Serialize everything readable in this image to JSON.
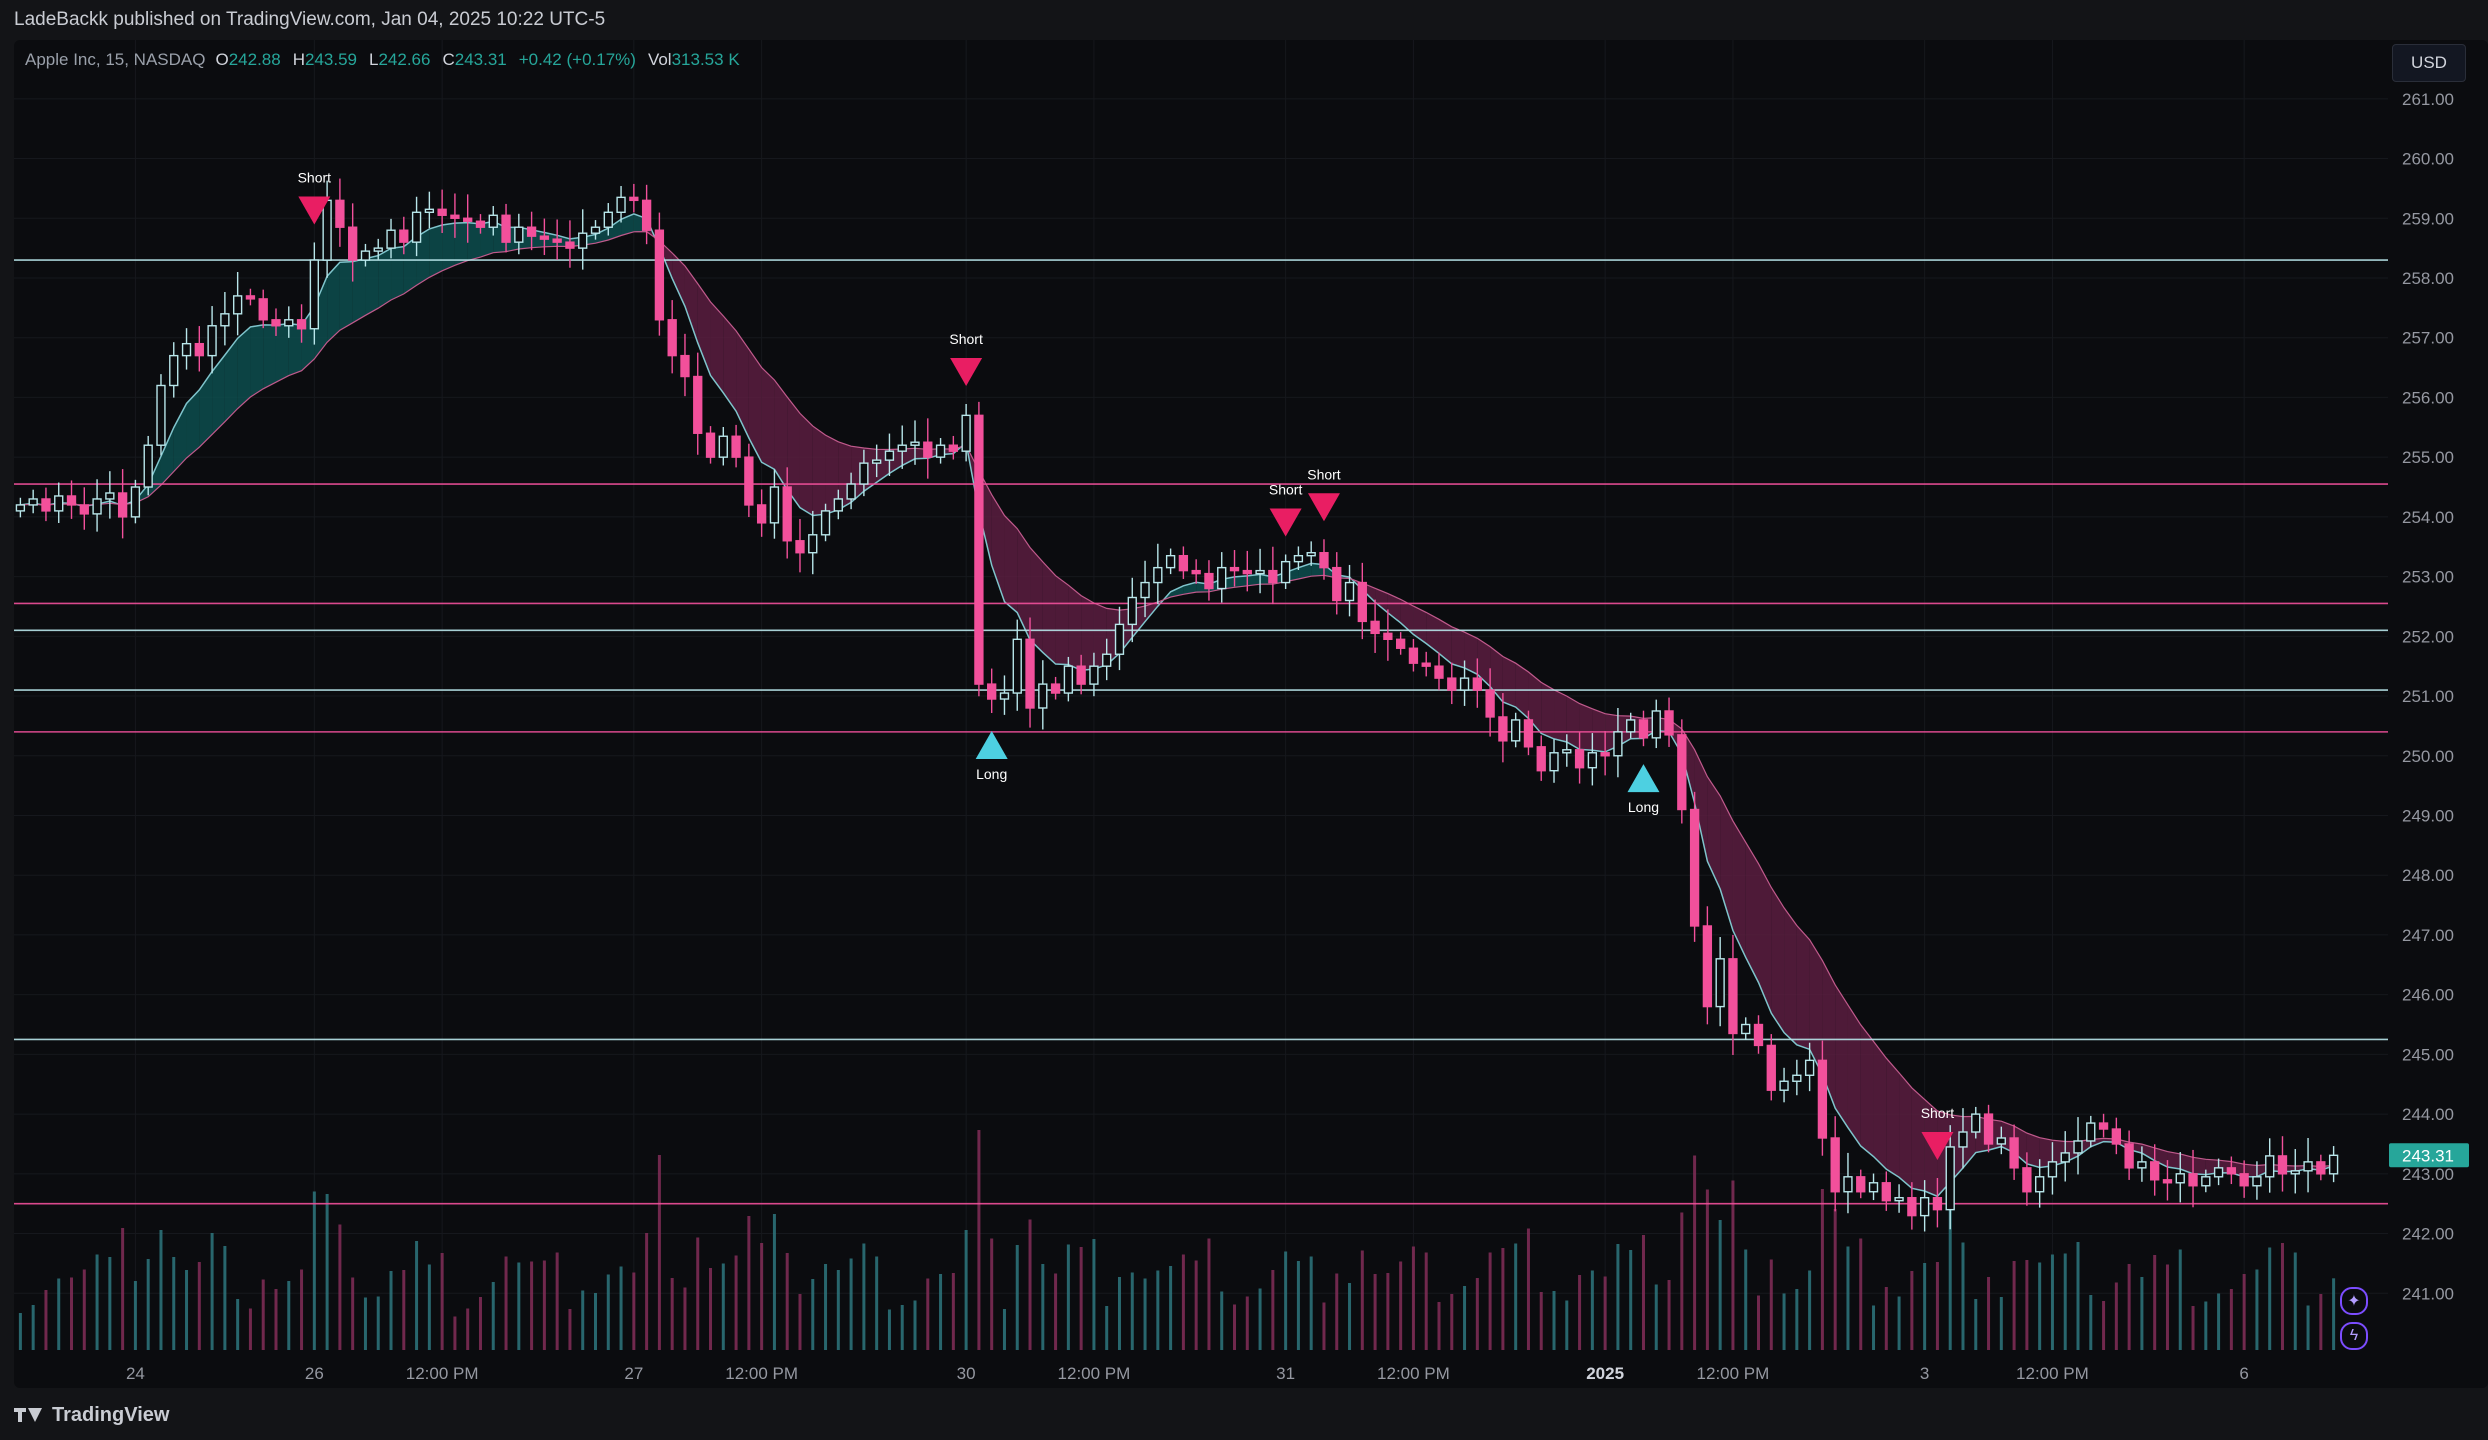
{
  "header": {
    "publisher_line": "LadeBackk published on TradingView.com, Jan 04, 2025 10:22 UTC-5"
  },
  "legend": {
    "symbol": "Apple Inc, 15, NASDAQ",
    "o_label": "O",
    "o_value": "242.88",
    "h_label": "H",
    "h_value": "243.59",
    "l_label": "L",
    "l_value": "242.66",
    "c_label": "C",
    "c_value": "243.31",
    "change": "+0.42 (+0.17%)",
    "vol_label": "Vol",
    "vol_value": "313.53 K"
  },
  "currency_button": "USD",
  "footer": {
    "brand": "TradingView"
  },
  "colors": {
    "bull": "#b8e6ea",
    "bear": "#f2509b",
    "cyan": "#4dd0e1",
    "pink": "#e91e63",
    "band_up": "#0d4d4d",
    "band_down": "#5a1d3f",
    "background": "#0b0c0f"
  },
  "chart_data": {
    "type": "candlestick",
    "x_tick_labels": [
      "24",
      "26",
      "12:00 PM",
      "27",
      "12:00 PM",
      "30",
      "12:00 PM",
      "31",
      "12:00 PM",
      "2025",
      "12:00 PM",
      "3",
      "12:00 PM",
      "6"
    ],
    "x_tick_positions_index": [
      9,
      23,
      33,
      48,
      58,
      74,
      84,
      99,
      109,
      124,
      134,
      149,
      159,
      174
    ],
    "y_ticks": [
      261,
      260,
      259,
      258,
      257,
      256,
      255,
      254,
      253,
      252,
      251,
      250,
      249,
      248,
      247,
      246,
      245,
      244,
      243,
      242,
      241
    ],
    "ylim": [
      240.05,
      261.65
    ],
    "last_price": "243.31",
    "horizontal_levels": [
      {
        "price": 258.3,
        "color": "#b8e6ea"
      },
      {
        "price": 254.55,
        "color": "#f2509b"
      },
      {
        "price": 252.55,
        "color": "#f2509b"
      },
      {
        "price": 252.1,
        "color": "#b8e6ea"
      },
      {
        "price": 251.1,
        "color": "#b8e6ea"
      },
      {
        "price": 250.4,
        "color": "#f2509b"
      },
      {
        "price": 245.25,
        "color": "#b8e6ea"
      },
      {
        "price": 242.5,
        "color": "#f2509b"
      }
    ],
    "close": [
      254.2,
      254.3,
      254.1,
      254.35,
      254.2,
      254.05,
      254.3,
      254.4,
      254.0,
      254.5,
      255.2,
      256.2,
      256.7,
      256.9,
      256.7,
      257.2,
      257.4,
      257.7,
      257.65,
      257.3,
      257.2,
      257.3,
      257.15,
      258.3,
      259.3,
      258.85,
      258.3,
      258.45,
      258.5,
      258.8,
      258.6,
      259.1,
      259.15,
      259.05,
      259.0,
      258.95,
      258.85,
      259.05,
      258.6,
      258.85,
      258.7,
      258.65,
      258.6,
      258.5,
      258.75,
      258.85,
      259.1,
      259.35,
      259.3,
      258.8,
      257.3,
      256.7,
      256.35,
      255.4,
      255.0,
      255.35,
      255.0,
      254.2,
      253.9,
      254.5,
      253.6,
      253.4,
      253.7,
      254.1,
      254.3,
      254.55,
      254.9,
      254.95,
      255.1,
      255.2,
      255.25,
      255.0,
      255.2,
      255.1,
      255.7,
      251.2,
      250.95,
      251.05,
      251.95,
      250.8,
      251.2,
      251.05,
      251.5,
      251.2,
      251.5,
      251.7,
      252.2,
      252.65,
      252.9,
      253.15,
      253.35,
      253.1,
      253.05,
      252.8,
      253.15,
      253.1,
      253.05,
      253.1,
      252.9,
      253.25,
      253.35,
      253.4,
      253.15,
      252.6,
      252.9,
      252.25,
      252.05,
      251.95,
      251.8,
      251.55,
      251.5,
      251.3,
      251.1,
      251.3,
      251.1,
      250.65,
      250.25,
      250.6,
      250.15,
      249.75,
      250.05,
      250.1,
      249.8,
      250.05,
      250.0,
      250.4,
      250.6,
      250.3,
      250.75,
      250.35,
      249.1,
      247.15,
      245.8,
      246.6,
      245.35,
      245.5,
      245.15,
      244.4,
      244.55,
      244.65,
      244.9,
      243.6,
      242.7,
      242.95,
      242.7,
      242.85,
      242.55,
      242.6,
      242.3,
      242.6,
      242.4,
      243.45,
      243.7,
      244.0,
      243.5,
      243.6,
      243.1,
      242.7,
      242.95,
      243.2,
      243.35,
      243.55,
      243.85,
      243.75,
      243.5,
      243.1,
      243.2,
      242.9,
      242.85,
      243.0,
      242.8,
      242.95,
      243.1,
      243.0,
      242.8,
      242.95,
      243.3,
      243.0,
      243.05,
      243.2,
      243.0,
      243.31
    ]
  }
}
